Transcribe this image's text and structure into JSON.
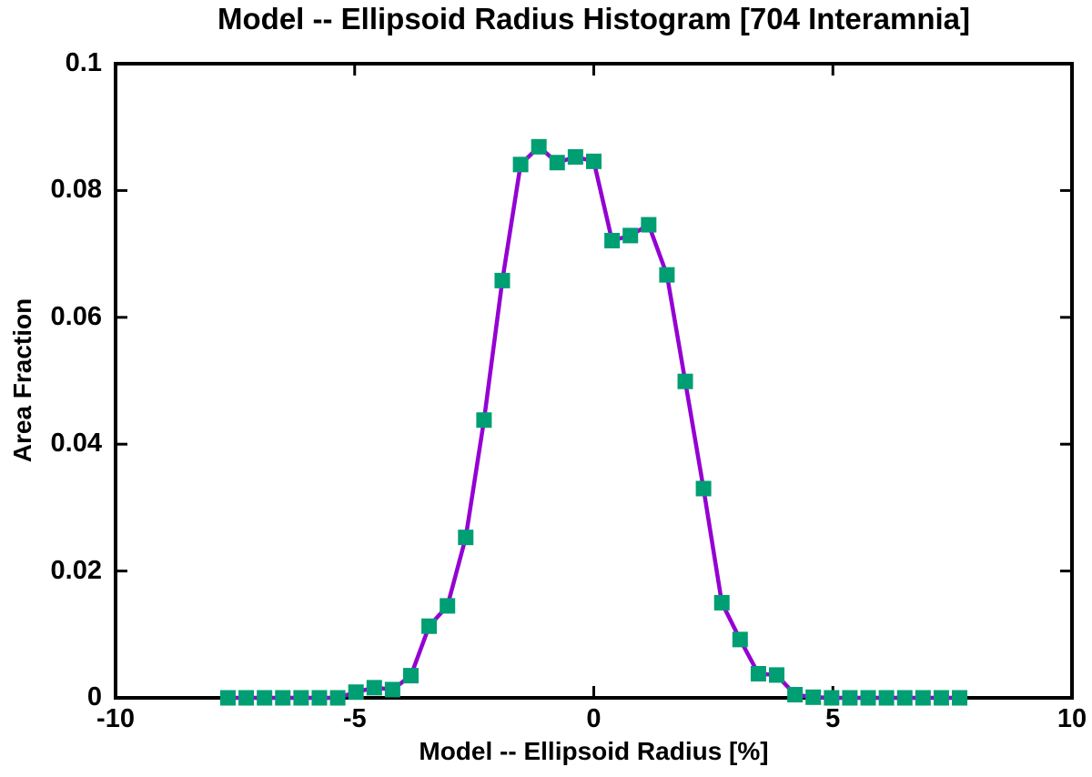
{
  "colors": {
    "background": "#ffffff",
    "axis": "#000000",
    "text": "#000000",
    "line": "#9400d3",
    "marker": "#009e73"
  },
  "chart_data": {
    "type": "line",
    "title": "Model -- Ellipsoid Radius Histogram [704 Interamnia]",
    "xlabel": "Model -- Ellipsoid Radius [%]",
    "ylabel": "Area Fraction",
    "xlim": [
      -10,
      10
    ],
    "ylim": [
      0,
      0.1
    ],
    "xticks": [
      -10,
      -5,
      0,
      5,
      10
    ],
    "xtick_labels": [
      "-10",
      "-5",
      "0",
      "5",
      "10"
    ],
    "yticks": [
      0,
      0.02,
      0.04,
      0.06,
      0.08,
      0.1
    ],
    "ytick_labels": [
      "0",
      "0.02",
      "0.04",
      "0.06",
      "0.08",
      "0.1"
    ],
    "grid": false,
    "legend": "none",
    "marker_shape": "square",
    "series": [
      {
        "name": "area-fraction",
        "x": [
          -7.65,
          -7.268,
          -6.885,
          -6.503,
          -6.12,
          -5.738,
          -5.355,
          -4.973,
          -4.59,
          -4.208,
          -3.825,
          -3.443,
          -3.06,
          -2.678,
          -2.295,
          -1.913,
          -1.53,
          -1.148,
          -0.765,
          -0.383,
          0.0,
          0.383,
          0.765,
          1.148,
          1.53,
          1.913,
          2.295,
          2.678,
          3.06,
          3.443,
          3.825,
          4.208,
          4.59,
          4.973,
          5.355,
          5.738,
          6.12,
          6.503,
          6.885,
          7.268,
          7.65
        ],
        "y": [
          0.0,
          0.0,
          0.0,
          0.0,
          0.0,
          0.0,
          0.0,
          0.0009,
          0.0016,
          0.0013,
          0.0035,
          0.0113,
          0.0145,
          0.0253,
          0.0438,
          0.0658,
          0.0841,
          0.0869,
          0.0844,
          0.0853,
          0.0846,
          0.0721,
          0.0729,
          0.0746,
          0.0667,
          0.0499,
          0.033,
          0.015,
          0.0092,
          0.0038,
          0.0036,
          0.0005,
          0.0001,
          0.0,
          0.0,
          0.0,
          0.0,
          0.0,
          0.0,
          0.0,
          0.0
        ]
      }
    ]
  }
}
